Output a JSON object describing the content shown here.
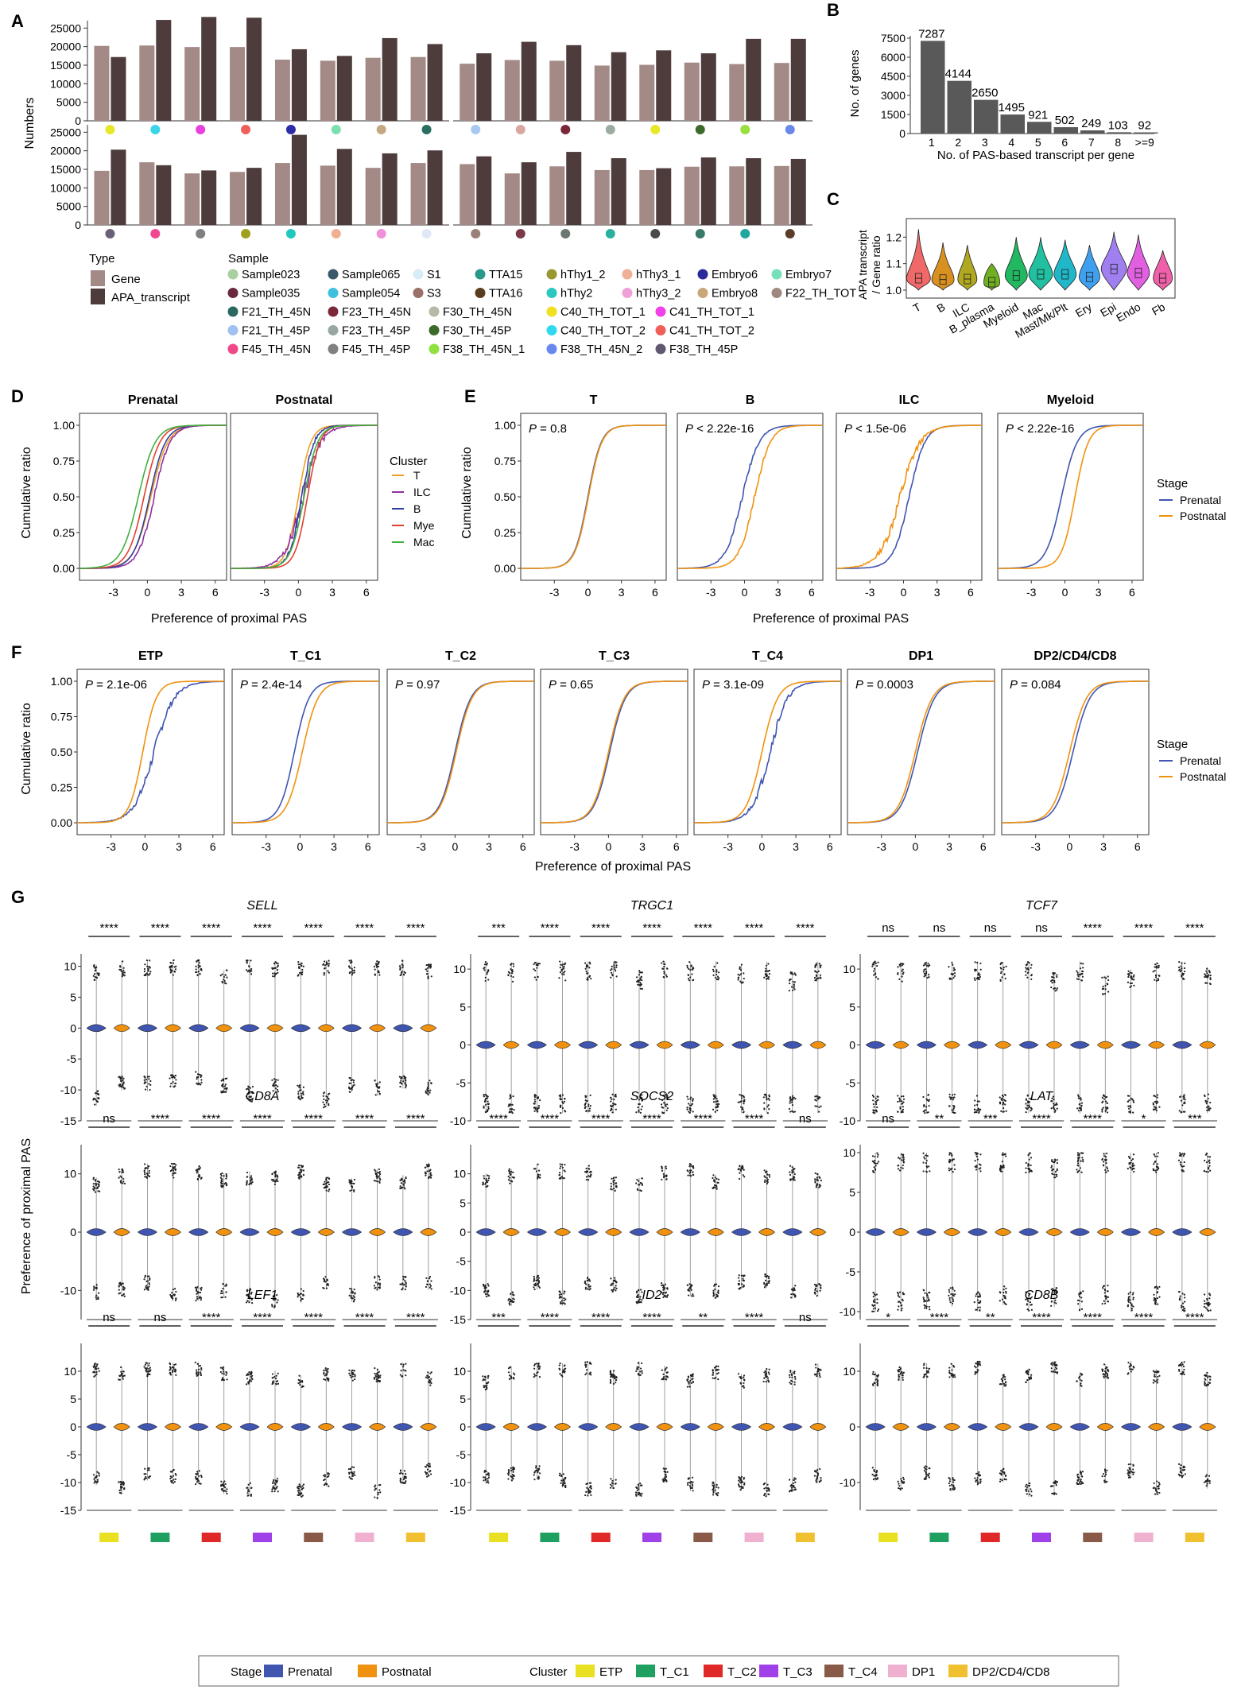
{
  "colors": {
    "gene": "#a38a87",
    "apa": "#4d3c3b",
    "prenatal": "#3f55b0",
    "postnatal": "#f0920f",
    "grid": "#000000"
  },
  "panel_letters": [
    "A",
    "B",
    "C",
    "D",
    "E",
    "F",
    "G"
  ],
  "chart_data": [
    {
      "id": "A",
      "type": "bar",
      "title": "",
      "ylabel": "Numbers",
      "ylim": [
        0,
        30000
      ],
      "yticks": [
        0,
        5000,
        10000,
        15000,
        20000,
        25000
      ],
      "series_names": [
        "Gene",
        "APA_transcript"
      ],
      "rows": [
        {
          "groups": [
            {
              "samples": [
                {
                  "color": "#e8e82a",
                  "gene": 20200,
                  "apa": 17200
                },
                {
                  "color": "#3ad6e8",
                  "gene": 20300,
                  "apa": 27200
                },
                {
                  "color": "#e840e0",
                  "gene": 19900,
                  "apa": 28000
                },
                {
                  "color": "#f0605a",
                  "gene": 19900,
                  "apa": 27800
                },
                {
                  "color": "#2c2ca8",
                  "gene": 16500,
                  "apa": 19300
                },
                {
                  "color": "#7ae0b0",
                  "gene": 16200,
                  "apa": 17500
                },
                {
                  "color": "#c4a882",
                  "gene": 17000,
                  "apa": 22300
                },
                {
                  "color": "#2a6e62",
                  "gene": 17200,
                  "apa": 20700
                }
              ]
            },
            {
              "samples": [
                {
                  "color": "#a8c8f0",
                  "gene": 15400,
                  "apa": 18200
                },
                {
                  "color": "#d8a8a0",
                  "gene": 16400,
                  "apa": 21300
                },
                {
                  "color": "#7a2838",
                  "gene": 16200,
                  "apa": 20400
                },
                {
                  "color": "#9aaca0",
                  "gene": 14900,
                  "apa": 18500
                },
                {
                  "color": "#e8e82a",
                  "gene": 15100,
                  "apa": 19000
                },
                {
                  "color": "#3d6a2c",
                  "gene": 15700,
                  "apa": 18200
                },
                {
                  "color": "#98e040",
                  "gene": 15300,
                  "apa": 22100
                },
                {
                  "color": "#6a88e8",
                  "gene": 15600,
                  "apa": 22100
                }
              ]
            }
          ]
        },
        {
          "groups": [
            {
              "samples": [
                {
                  "color": "#6a6078",
                  "gene": 14600,
                  "apa": 20300
                },
                {
                  "color": "#f04890",
                  "gene": 16900,
                  "apa": 16100
                },
                {
                  "color": "#808080",
                  "gene": 13900,
                  "apa": 14700
                },
                {
                  "color": "#a0a020",
                  "gene": 14300,
                  "apa": 15400
                },
                {
                  "color": "#20c8c0",
                  "gene": 16700,
                  "apa": 24300
                },
                {
                  "color": "#f0b090",
                  "gene": 16000,
                  "apa": 20500
                },
                {
                  "color": "#f090d8",
                  "gene": 15400,
                  "apa": 19300
                },
                {
                  "color": "#e0e8f8",
                  "gene": 16700,
                  "apa": 20100
                }
              ]
            },
            {
              "samples": [
                {
                  "color": "#9a8078",
                  "gene": 16400,
                  "apa": 18500
                },
                {
                  "color": "#7a3848",
                  "gene": 13900,
                  "apa": 16900
                },
                {
                  "color": "#6a7870",
                  "gene": 15800,
                  "apa": 19700
                },
                {
                  "color": "#2ab0a0",
                  "gene": 14800,
                  "apa": 18000
                },
                {
                  "color": "#4a4a4a",
                  "gene": 14800,
                  "apa": 15300
                },
                {
                  "color": "#3a7868",
                  "gene": 15700,
                  "apa": 18200
                },
                {
                  "color": "#20a8a0",
                  "gene": 15800,
                  "apa": 18000
                },
                {
                  "color": "#5a3c28",
                  "gene": 15900,
                  "apa": 17800
                }
              ]
            }
          ]
        }
      ],
      "legend": {
        "type_title": "Type",
        "type_items": [
          "Gene",
          "APA_transcript"
        ],
        "sample_title": "Sample",
        "sample_items": [
          {
            "label": "Sample023",
            "color": "#a8d0a0"
          },
          {
            "label": "Sample065",
            "color": "#3a5868"
          },
          {
            "label": "S1",
            "color": "#d8ecf8"
          },
          {
            "label": "TTA15",
            "color": "#2a9888"
          },
          {
            "label": "hThy1_2",
            "color": "#989830"
          },
          {
            "label": "hThy3_1",
            "color": "#f0b098"
          },
          {
            "label": "Embryo6",
            "color": "#2a2a98"
          },
          {
            "label": "Embryo7",
            "color": "#78e0b8"
          },
          {
            "label": "Sample035",
            "color": "#6a2840"
          },
          {
            "label": "Sample054",
            "color": "#40c0e0"
          },
          {
            "label": "S3",
            "color": "#9a7068"
          },
          {
            "label": "TTA16",
            "color": "#5a3c20"
          },
          {
            "label": "hThy2",
            "color": "#2ac8c0"
          },
          {
            "label": "hThy3_2",
            "color": "#f0a0d8"
          },
          {
            "label": "Embryo8",
            "color": "#c8a878"
          },
          {
            "label": "F22_TH_TOT",
            "color": "#a08880"
          },
          {
            "label": "F21_TH_45N",
            "color": "#2a6860"
          },
          {
            "label": "F23_TH_45N",
            "color": "#7a2838"
          },
          {
            "label": "F30_TH_45N",
            "color": "#b8b8a8"
          },
          {
            "label": "C40_TH_TOT_1",
            "color": "#f0e020"
          },
          {
            "label": "C41_TH_TOT_1",
            "color": "#f040e8"
          },
          {
            "label": "F21_TH_45P",
            "color": "#a0c0f0"
          },
          {
            "label": "F23_TH_45P",
            "color": "#98a8a0"
          },
          {
            "label": "F30_TH_45P",
            "color": "#3d6a2c"
          },
          {
            "label": "C40_TH_TOT_2",
            "color": "#30d8f0"
          },
          {
            "label": "C41_TH_TOT_2",
            "color": "#f06058"
          },
          {
            "label": "F45_TH_45N",
            "color": "#f04888"
          },
          {
            "label": "F45_TH_45P",
            "color": "#808080"
          },
          {
            "label": "F38_TH_45N_1",
            "color": "#90e040"
          },
          {
            "label": "F38_TH_45N_2",
            "color": "#6888f0"
          },
          {
            "label": "F38_TH_45P",
            "color": "#605870"
          }
        ]
      }
    },
    {
      "id": "B",
      "type": "bar",
      "ylabel": "No. of genes",
      "xlabel": "No. of PAS-based transcript per gene",
      "ylim": [
        0,
        7500
      ],
      "yticks": [
        0,
        1500,
        3000,
        4500,
        6000,
        7500
      ],
      "categories": [
        "1",
        "2",
        "3",
        "4",
        "5",
        "6",
        "7",
        "8",
        ">=9"
      ],
      "values": [
        7287,
        4144,
        2650,
        1495,
        921,
        502,
        249,
        103,
        92
      ]
    },
    {
      "id": "C",
      "type": "violin",
      "ylabel": "APA transcript\n/ Gene ratio",
      "yticks": [
        1.0,
        1.1,
        1.2
      ],
      "categories": [
        "T",
        "B",
        "ILC",
        "B_plasma",
        "Myeloid",
        "Mac",
        "Mast/Mk/Plt",
        "Ery",
        "Epi",
        "Endo",
        "Fb"
      ],
      "colors": [
        "#f06868",
        "#d89020",
        "#b0a820",
        "#70b020",
        "#20b860",
        "#20c0a0",
        "#20b8c8",
        "#40a0f0",
        "#a080f0",
        "#e060e0",
        "#f060a8"
      ]
    },
    {
      "id": "D",
      "type": "line",
      "ylabel": "Cumulative ratio",
      "xlabel": "Preference of proximal PAS",
      "xticks": [
        -3,
        0,
        3,
        6
      ],
      "yticks": [
        0.0,
        0.25,
        0.5,
        0.75,
        1.0
      ],
      "facets": [
        "Prenatal",
        "Postnatal"
      ],
      "legend_title": "Cluster",
      "series": [
        {
          "name": "T",
          "color": "#f0a020"
        },
        {
          "name": "ILC",
          "color": "#9030a0"
        },
        {
          "name": "B",
          "color": "#3040a0"
        },
        {
          "name": "Mye",
          "color": "#e04030"
        },
        {
          "name": "Mac",
          "color": "#40b040"
        }
      ]
    },
    {
      "id": "E",
      "type": "line",
      "ylabel": "Cumulative ratio",
      "xlabel": "Preference of proximal PAS",
      "xticks": [
        -3,
        0,
        3,
        6
      ],
      "yticks": [
        0.0,
        0.25,
        0.5,
        0.75,
        1.0
      ],
      "facets": [
        {
          "name": "T",
          "p": "P = 0.8"
        },
        {
          "name": "B",
          "p": "P < 2.22e-16"
        },
        {
          "name": "ILC",
          "p": "P < 1.5e-06"
        },
        {
          "name": "Myeloid",
          "p": "P < 2.22e-16"
        }
      ],
      "legend_title": "Stage",
      "series": [
        "Prenatal",
        "Postnatal"
      ]
    },
    {
      "id": "F",
      "type": "line",
      "ylabel": "Cumulative ratio",
      "xlabel": "Preference of proximal PAS",
      "xticks": [
        -3,
        0,
        3,
        6
      ],
      "yticks": [
        0.0,
        0.25,
        0.5,
        0.75,
        1.0
      ],
      "facets": [
        {
          "name": "ETP",
          "p": "P = 2.1e-06"
        },
        {
          "name": "T_C1",
          "p": "P = 2.4e-14"
        },
        {
          "name": "T_C2",
          "p": "P = 0.97"
        },
        {
          "name": "T_C3",
          "p": "P = 0.65"
        },
        {
          "name": "T_C4",
          "p": "P = 3.1e-09"
        },
        {
          "name": "DP1",
          "p": "P = 0.0003"
        },
        {
          "name": "DP2/CD4/CD8",
          "p": "P = 0.084"
        }
      ],
      "legend_title": "Stage",
      "series": [
        "Prenatal",
        "Postnatal"
      ]
    },
    {
      "id": "G",
      "type": "violin",
      "ylabel": "Preference of proximal PAS",
      "genes": [
        {
          "name": "SELL",
          "sig": [
            "****",
            "****",
            "****",
            "****",
            "****",
            "****",
            "****"
          ],
          "ylim": [
            -15,
            12
          ],
          "yticks": [
            -15,
            -10,
            -5,
            0,
            5,
            10
          ]
        },
        {
          "name": "TRGC1",
          "sig": [
            "***",
            "****",
            "****",
            "****",
            "****",
            "****",
            "****"
          ],
          "ylim": [
            -10,
            12
          ],
          "yticks": [
            -10,
            -5,
            0,
            5,
            10
          ]
        },
        {
          "name": "TCF7",
          "sig": [
            "ns",
            "ns",
            "ns",
            "ns",
            "****",
            "****",
            "****"
          ],
          "ylim": [
            -10,
            12
          ],
          "yticks": [
            -10,
            -5,
            0,
            5,
            10
          ]
        },
        {
          "name": "CD8A",
          "sig": [
            "ns",
            "****",
            "****",
            "****",
            "****",
            "****",
            "****"
          ],
          "ylim": [
            -15,
            15
          ],
          "yticks": [
            -10,
            0,
            10
          ]
        },
        {
          "name": "SOCS2",
          "sig": [
            "****",
            "****",
            "****",
            "****",
            "****",
            "****",
            "ns"
          ],
          "ylim": [
            -15,
            15
          ],
          "yticks": [
            -15,
            -10,
            -5,
            0,
            5,
            10
          ]
        },
        {
          "name": "LAT",
          "sig": [
            "ns",
            "**",
            "***",
            "****",
            "****",
            "*",
            "***"
          ],
          "ylim": [
            -11,
            11
          ],
          "yticks": [
            -10,
            -5,
            0,
            5,
            10
          ]
        },
        {
          "name": "LEF1",
          "sig": [
            "ns",
            "ns",
            "****",
            "****",
            "****",
            "****",
            "****"
          ],
          "ylim": [
            -15,
            15
          ],
          "yticks": [
            -15,
            -10,
            -5,
            0,
            5,
            10
          ]
        },
        {
          "name": "ID2",
          "sig": [
            "***",
            "****",
            "****",
            "****",
            "**",
            "****",
            "ns"
          ],
          "ylim": [
            -15,
            15
          ],
          "yticks": [
            -15,
            -10,
            -5,
            0,
            5,
            10
          ]
        },
        {
          "name": "CD8B",
          "sig": [
            "*",
            "****",
            "**",
            "****",
            "****",
            "****",
            "****"
          ],
          "ylim": [
            -15,
            15
          ],
          "yticks": [
            -10,
            0,
            10
          ]
        }
      ],
      "clusters": [
        {
          "name": "ETP",
          "color": "#e8e020"
        },
        {
          "name": "T_C1",
          "color": "#20a060"
        },
        {
          "name": "T_C2",
          "color": "#e02828"
        },
        {
          "name": "T_C3",
          "color": "#a040e8"
        },
        {
          "name": "T_C4",
          "color": "#8a5a48"
        },
        {
          "name": "DP1",
          "color": "#f0b0d0"
        },
        {
          "name": "DP2/CD4/CD8",
          "color": "#f0c030"
        }
      ],
      "legend": {
        "stage_title": "Stage",
        "stages": [
          "Prenatal",
          "Postnatal"
        ],
        "cluster_title": "Cluster"
      }
    }
  ]
}
